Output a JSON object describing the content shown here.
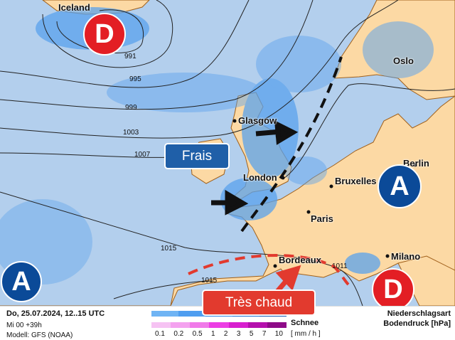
{
  "colors": {
    "sea": "#b3cfed",
    "land": "#fcd9a4",
    "rain": "#5aa2ec",
    "low": "#e31e24",
    "high": "#0b4a98",
    "frais": "#1f5fa8",
    "chaud": "#e23a2e"
  },
  "cities": [
    {
      "name": "Iceland"
    },
    {
      "name": "Oslo"
    },
    {
      "name": "Glasgow"
    },
    {
      "name": "Berlin"
    },
    {
      "name": "London"
    },
    {
      "name": "Bruxelles"
    },
    {
      "name": "Paris"
    },
    {
      "name": "Bordeaux"
    },
    {
      "name": "Milano"
    }
  ],
  "isobars": [
    "991",
    "995",
    "999",
    "1003",
    "1007",
    "1015",
    "1015",
    "1011"
  ],
  "pressure_systems": {
    "low1": "D",
    "low2": "D",
    "high1": "A",
    "high2": "A"
  },
  "annotations": {
    "cool": "Frais",
    "hot": "Très chaud"
  },
  "legend": {
    "date": "Do, 25.07.2024, 12..15 UTC",
    "run": "Mi 00 +39h",
    "model": "Modell: GFS (NOAA)",
    "snow": "Schnee",
    "unit": "[ mm / h ]",
    "ticks": [
      "0.1",
      "0.2",
      "0.5",
      "1",
      "2",
      "3",
      "5",
      "7",
      "10"
    ],
    "type_label": "Niederschlagsart",
    "pressure_label": "Bodendruck [hPa]"
  }
}
